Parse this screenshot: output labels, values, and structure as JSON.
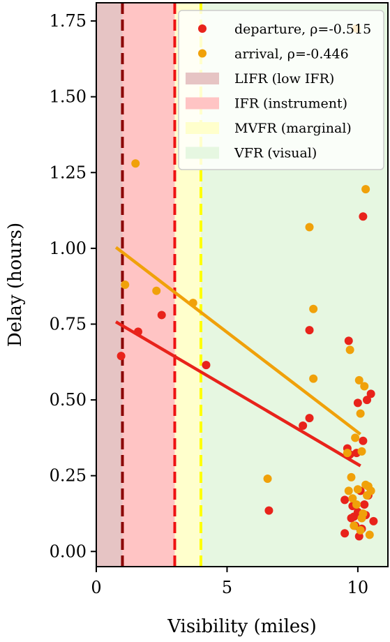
{
  "chart_data": {
    "type": "scatter",
    "xlabel": "Visibility  (miles)",
    "ylabel": "Delay  (hours)",
    "xlim": [
      0,
      11.15
    ],
    "ylim": [
      -0.05,
      1.81
    ],
    "xticks": [
      0,
      5,
      10
    ],
    "yticks": [
      0.0,
      0.25,
      0.5,
      0.75,
      1.0,
      1.25,
      1.5,
      1.75
    ],
    "xtick_labels": [
      "0",
      "5",
      "10"
    ],
    "ytick_labels": [
      "0.00",
      "0.25",
      "0.50",
      "0.75",
      "1.00",
      "1.25",
      "1.50",
      "1.75"
    ],
    "grid": false,
    "legend_position": "top-right",
    "bands": [
      {
        "name": "LIFR (low IFR)",
        "from": 0,
        "to": 1,
        "color": "#e6c4c4"
      },
      {
        "name": "IFR (instrument)",
        "from": 1,
        "to": 3,
        "color": "#ffc4c4"
      },
      {
        "name": "MVFR (marginal)",
        "from": 3,
        "to": 4,
        "color": "#ffffcc"
      },
      {
        "name": "VFR (visual)",
        "from": 4,
        "to": 11.15,
        "color": "#e6f7e1"
      }
    ],
    "thresholds": [
      {
        "x": 1,
        "color": "#8b0000"
      },
      {
        "x": 3,
        "color": "#ee1111"
      },
      {
        "x": 4,
        "color": "#ffff00"
      }
    ],
    "series": [
      {
        "name": "departure, ρ=-0.515",
        "color": "#e8231b",
        "points": [
          [
            0.95,
            0.645
          ],
          [
            1.6,
            0.725
          ],
          [
            2.5,
            0.78
          ],
          [
            4.2,
            0.615
          ],
          [
            6.6,
            0.135
          ],
          [
            7.9,
            0.415
          ],
          [
            8.15,
            0.44
          ],
          [
            8.15,
            0.73
          ],
          [
            9.5,
            0.06
          ],
          [
            9.5,
            0.17
          ],
          [
            9.6,
            0.34
          ],
          [
            9.65,
            0.695
          ],
          [
            9.7,
            0.32
          ],
          [
            9.75,
            0.11
          ],
          [
            9.8,
            0.15
          ],
          [
            9.85,
            0.115
          ],
          [
            9.9,
            0.085
          ],
          [
            9.95,
            0.325
          ],
          [
            10.0,
            0.49
          ],
          [
            10.0,
            0.13
          ],
          [
            10.05,
            0.05
          ],
          [
            10.1,
            0.2
          ],
          [
            10.15,
            0.075
          ],
          [
            10.2,
            0.365
          ],
          [
            10.2,
            1.105
          ],
          [
            10.25,
            0.155
          ],
          [
            10.3,
            0.12
          ],
          [
            10.35,
            0.5
          ],
          [
            10.4,
            0.185
          ],
          [
            10.5,
            0.52
          ],
          [
            10.6,
            0.1
          ]
        ],
        "fit": {
          "x0": 0.8,
          "y0": 0.755,
          "x1": 10.05,
          "y1": 0.285
        }
      },
      {
        "name": "arrival, ρ=-0.446",
        "color": "#f0a10a",
        "points": [
          [
            1.1,
            0.88
          ],
          [
            1.5,
            1.28
          ],
          [
            2.3,
            0.86
          ],
          [
            3.7,
            0.82
          ],
          [
            6.55,
            0.24
          ],
          [
            8.15,
            1.07
          ],
          [
            8.3,
            0.57
          ],
          [
            8.3,
            0.8
          ],
          [
            9.6,
            0.325
          ],
          [
            9.65,
            0.2
          ],
          [
            9.7,
            0.665
          ],
          [
            9.75,
            0.245
          ],
          [
            9.8,
            0.175
          ],
          [
            9.85,
            0.085
          ],
          [
            9.9,
            0.375
          ],
          [
            9.95,
            0.155
          ],
          [
            10.0,
            0.205
          ],
          [
            10.05,
            0.565
          ],
          [
            10.1,
            0.455
          ],
          [
            10.1,
            0.07
          ],
          [
            10.15,
            0.33
          ],
          [
            10.2,
            0.125
          ],
          [
            10.25,
            0.545
          ],
          [
            10.3,
            0.22
          ],
          [
            10.3,
            1.195
          ],
          [
            10.35,
            0.185
          ],
          [
            10.4,
            0.215
          ],
          [
            10.45,
            0.055
          ],
          [
            10.5,
            0.2
          ],
          [
            10.15,
            0.11
          ],
          [
            9.95,
            1.725
          ]
        ],
        "fit": {
          "x0": 0.8,
          "y0": 1.0,
          "x1": 10.05,
          "y1": 0.39
        }
      }
    ]
  }
}
